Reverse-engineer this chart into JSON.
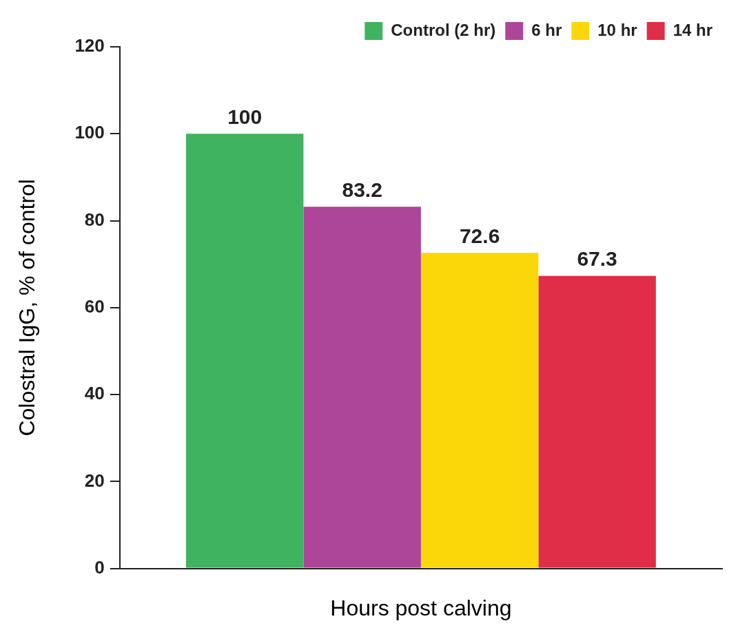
{
  "chart_data": {
    "type": "bar",
    "xlabel": "Hours post calving",
    "ylabel": "Colostral IgG, % of control",
    "categories": [
      null
    ],
    "series": [
      {
        "name": "Control (2 hr)",
        "color": "#40b360",
        "values": [
          100
        ]
      },
      {
        "name": "6 hr",
        "color": "#ad4699",
        "values": [
          83.2
        ]
      },
      {
        "name": "10 hr",
        "color": "#fbd70a",
        "values": [
          72.6
        ]
      },
      {
        "name": "14 hr",
        "color": "#e02d48",
        "values": [
          67.3
        ]
      }
    ],
    "ylim": [
      0,
      120
    ],
    "yticks": [
      0,
      20,
      40,
      60,
      80,
      100,
      120
    ],
    "grid": false,
    "legend": "top right",
    "data_labels": true
  }
}
